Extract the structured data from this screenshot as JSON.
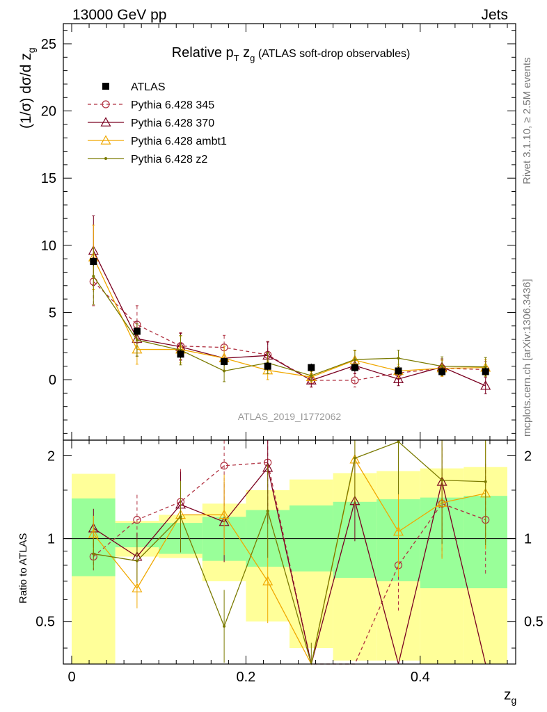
{
  "header": {
    "left": "13000 GeV pp",
    "right": "Jets"
  },
  "side_texts": {
    "rivet": "Rivet 3.1.10, ≥ 2.5M events",
    "mcplots": "mcplots.cern.ch [arXiv:1306.3436]"
  },
  "chart_data": {
    "type": "line",
    "title": "Relative p_T z_g (ATLAS soft-drop observables)",
    "title_parts": {
      "prefix": "Relative p",
      "sub1": "T",
      "mid": " z",
      "sub2": "g",
      "suffix": " (ATLAS soft-drop observables)"
    },
    "analysis_id": "ATLAS_2019_I1772062",
    "ylabel_top": "(1/σ) dσ/d z_g",
    "ylabel_ratio": "Ratio to ATLAS",
    "xlabel": "z_g",
    "xlim": [
      0,
      0.5
    ],
    "ylim_top": [
      -4.5,
      26.5
    ],
    "ylim_ratio": [
      0.35,
      2.28
    ],
    "ratio_log_scale": true,
    "x_ticks": [
      "0",
      "0.2",
      "0.4"
    ],
    "y_ticks_top": [
      "0",
      "5",
      "10",
      "15",
      "20",
      "25"
    ],
    "y_ticks_ratio": [
      "0.5",
      "1",
      "2"
    ],
    "x": [
      0.025,
      0.075,
      0.125,
      0.175,
      0.225,
      0.275,
      0.325,
      0.375,
      0.425,
      0.475
    ],
    "bin_edges": [
      0,
      0.05,
      0.1,
      0.15,
      0.2,
      0.25,
      0.3,
      0.35,
      0.4,
      0.45,
      0.5
    ],
    "data": {
      "name": "ATLAS",
      "values": [
        8.8,
        3.6,
        1.9,
        1.35,
        1.0,
        0.9,
        0.9,
        0.65,
        0.6,
        0.6
      ],
      "band_stat_ratio": [
        [
          0.73,
          1.4
        ],
        [
          0.93,
          1.14
        ],
        [
          0.88,
          1.14
        ],
        [
          0.83,
          1.2
        ],
        [
          0.79,
          1.27
        ],
        [
          0.76,
          1.32
        ],
        [
          0.72,
          1.36
        ],
        [
          0.7,
          1.39
        ],
        [
          0.66,
          1.41
        ],
        [
          0.66,
          1.43
        ]
      ],
      "band_tot_ratio": [
        [
          0.35,
          1.72
        ],
        [
          0.86,
          1.16
        ],
        [
          0.85,
          1.22
        ],
        [
          0.7,
          1.34
        ],
        [
          0.5,
          1.5
        ],
        [
          0.4,
          1.64
        ],
        [
          0.36,
          1.73
        ],
        [
          0.36,
          1.76
        ],
        [
          0.35,
          1.8
        ],
        [
          0.35,
          1.82
        ]
      ]
    },
    "series": [
      {
        "name": "Pythia 6.428 345",
        "color": "#b03040",
        "dash": "5,4",
        "marker": "circle",
        "values": [
          7.3,
          4.1,
          2.5,
          2.4,
          1.85,
          -0.05,
          -0.05,
          0.5,
          0.85,
          0.75
        ],
        "errors": [
          1.8,
          1.4,
          1.0,
          0.9,
          1.0,
          0.5,
          0.5,
          0.5,
          0.6,
          0.6
        ],
        "ratio": [
          0.86,
          1.17,
          1.36,
          1.84,
          1.89,
          0.1,
          0.1,
          0.8,
          1.34,
          1.17
        ]
      },
      {
        "name": "Pythia 6.428 370",
        "color": "#7a0020",
        "dash": "",
        "marker": "triangle",
        "values": [
          9.6,
          3.05,
          2.45,
          1.6,
          1.8,
          -0.05,
          1.05,
          0.05,
          0.95,
          -0.45
        ],
        "errors": [
          2.6,
          1.3,
          1.0,
          0.9,
          1.0,
          0.5,
          0.6,
          0.5,
          0.6,
          0.6
        ],
        "ratio": [
          1.09,
          0.86,
          1.33,
          1.15,
          1.81,
          0.1,
          1.37,
          0.1,
          1.61,
          0.1
        ]
      },
      {
        "name": "Pythia 6.428 ambt1",
        "color": "#f0a800",
        "dash": "",
        "marker": "triangle",
        "values": [
          9.1,
          2.25,
          2.25,
          1.6,
          0.7,
          0.2,
          1.45,
          0.65,
          0.85,
          0.9
        ],
        "errors": [
          2.4,
          1.1,
          1.0,
          0.9,
          0.7,
          0.4,
          0.7,
          0.5,
          0.6,
          0.6
        ],
        "ratio": [
          1.04,
          0.66,
          1.22,
          1.22,
          0.7,
          0.25,
          1.94,
          1.06,
          1.35,
          1.46
        ]
      },
      {
        "name": "Pythia 6.428 z2",
        "color": "#7a7a00",
        "dash": "",
        "marker": "dot",
        "values": [
          7.7,
          2.95,
          2.2,
          0.65,
          1.25,
          0.3,
          1.5,
          1.6,
          1.0,
          0.95
        ],
        "errors": [
          2.1,
          1.2,
          1.1,
          0.8,
          0.8,
          0.4,
          0.7,
          0.6,
          0.7,
          0.7
        ],
        "ratio": [
          0.88,
          0.83,
          1.2,
          0.48,
          1.26,
          0.33,
          1.96,
          2.25,
          1.63,
          1.61
        ]
      }
    ],
    "legend_position": "top-left"
  }
}
